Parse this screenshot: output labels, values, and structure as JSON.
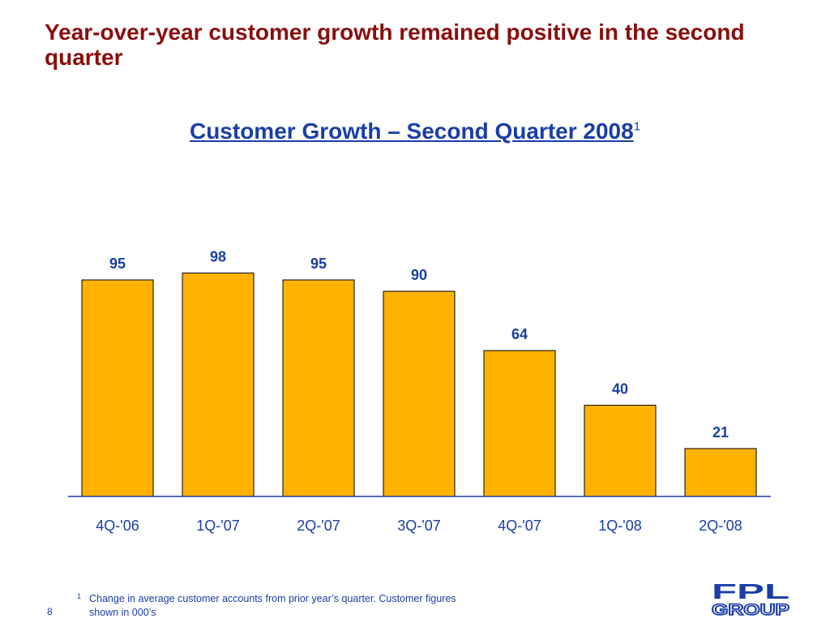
{
  "slide": {
    "headline": "Year-over-year customer growth remained positive in the second quarter",
    "footnote_mark": "1",
    "footnote": "Change in average customer accounts from prior year’s quarter. Customer figures shown in 000’s",
    "page_number": "8",
    "logo_text": [
      "FPL",
      "GROUP"
    ],
    "colors": {
      "headline": "#8b0d0d",
      "accent": "#1a3ea6",
      "bar": "#ffb300"
    }
  },
  "chart_data": {
    "type": "bar",
    "title": "Customer Growth – Second Quarter 2008",
    "title_footnote": "1",
    "categories": [
      "4Q-'06",
      "1Q-'07",
      "2Q-'07",
      "3Q-'07",
      "4Q-'07",
      "1Q-'08",
      "2Q-'08"
    ],
    "values": [
      95,
      98,
      95,
      90,
      64,
      40,
      21
    ],
    "data_labels": [
      "95",
      "98",
      "95",
      "90",
      "64",
      "40",
      "21"
    ],
    "ylim": [
      0,
      100
    ],
    "grid": false,
    "legend": "none"
  }
}
